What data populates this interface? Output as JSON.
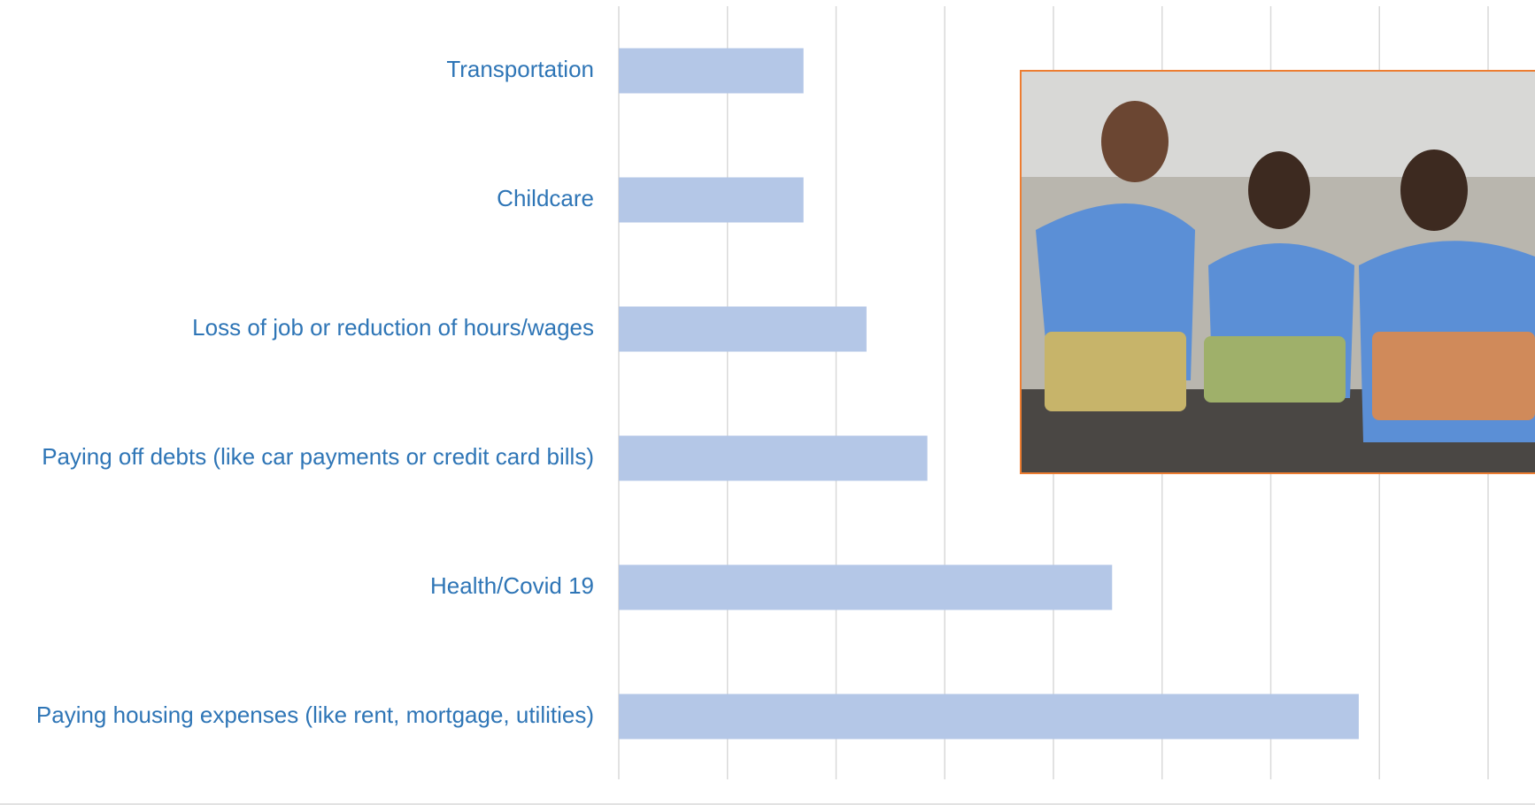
{
  "chart_data": {
    "type": "bar",
    "orientation": "horizontal",
    "categories": [
      "Transportation",
      "Childcare",
      "Loss of job or reduction of hours/wages",
      "Paying off debts (like car payments or credit card bills)",
      "Health/Covid 19",
      "Paying housing expenses (like rent, mortgage, utilities)"
    ],
    "values": [
      1.7,
      1.7,
      2.28,
      2.84,
      4.54,
      6.81
    ],
    "color": "#b4c7e7",
    "xlim": [
      0,
      8
    ],
    "xticks": [
      0,
      1,
      2,
      3,
      4,
      5,
      6,
      7,
      8
    ],
    "grid": true
  }
}
